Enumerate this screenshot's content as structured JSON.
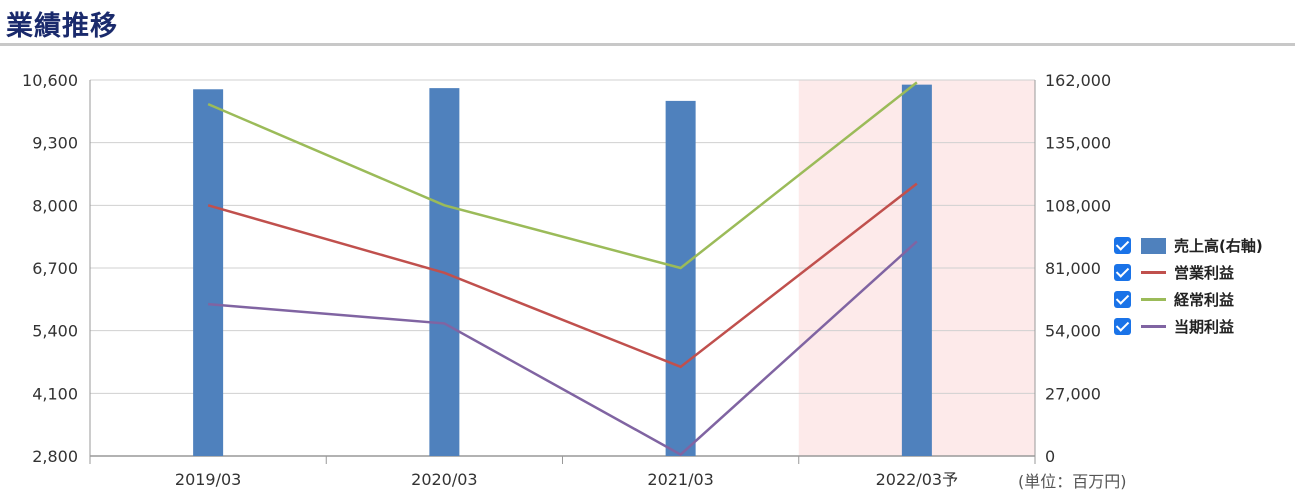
{
  "page": {
    "title": "業績推移",
    "unit_note": "(単位：百万円)"
  },
  "legend": [
    {
      "label": "売上高(右軸)",
      "checked": true,
      "kind": "bar",
      "color": "#4f81bd"
    },
    {
      "label": "営業利益",
      "checked": true,
      "kind": "line",
      "color": "#c0504d"
    },
    {
      "label": "経常利益",
      "checked": true,
      "kind": "line",
      "color": "#9bbb59"
    },
    {
      "label": "当期利益",
      "checked": true,
      "kind": "line",
      "color": "#8064a2"
    }
  ],
  "chart_data": {
    "type": "bar",
    "categories": [
      "2019/03",
      "2020/03",
      "2021/03",
      "2022/03予"
    ],
    "forecast_category": "2022/03予",
    "left_axis": {
      "ticks": [
        "10,600",
        "9,300",
        "8,000",
        "6,700",
        "5,400",
        "4,100",
        "2,800"
      ],
      "ylim": [
        2800,
        10600
      ]
    },
    "right_axis": {
      "ticks": [
        "162,000",
        "135,000",
        "108,000",
        "81,000",
        "54,000",
        "27,000",
        "0"
      ],
      "ylim": [
        0,
        162000
      ]
    },
    "series": [
      {
        "name": "売上高(右軸)",
        "type": "bar",
        "axis": "right",
        "color": "#4f81bd",
        "values": [
          158000,
          158500,
          153000,
          160000
        ]
      },
      {
        "name": "営業利益",
        "type": "line",
        "axis": "left",
        "color": "#c0504d",
        "values": [
          8000,
          6600,
          4650,
          8450
        ]
      },
      {
        "name": "経常利益",
        "type": "line",
        "axis": "left",
        "color": "#9bbb59",
        "values": [
          10100,
          8000,
          6700,
          10550
        ]
      },
      {
        "name": "当期利益",
        "type": "line",
        "axis": "left",
        "color": "#8064a2",
        "values": [
          5950,
          5550,
          2830,
          7250
        ]
      }
    ],
    "grid": true,
    "legend_position": "right"
  }
}
